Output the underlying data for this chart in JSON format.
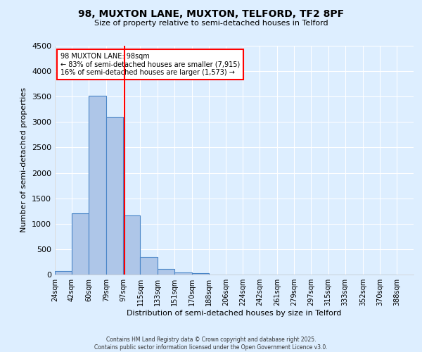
{
  "title_line1": "98, MUXTON LANE, MUXTON, TELFORD, TF2 8PF",
  "title_line2": "Size of property relative to semi-detached houses in Telford",
  "xlabel": "Distribution of semi-detached houses by size in Telford",
  "ylabel": "Number of semi-detached properties",
  "bin_labels": [
    "24sqm",
    "42sqm",
    "60sqm",
    "79sqm",
    "97sqm",
    "115sqm",
    "133sqm",
    "151sqm",
    "170sqm",
    "188sqm",
    "206sqm",
    "224sqm",
    "242sqm",
    "261sqm",
    "279sqm",
    "297sqm",
    "315sqm",
    "333sqm",
    "352sqm",
    "370sqm",
    "388sqm"
  ],
  "bin_edges": [
    24,
    42,
    60,
    79,
    97,
    115,
    133,
    151,
    170,
    188,
    206,
    224,
    242,
    261,
    279,
    297,
    315,
    333,
    352,
    370,
    388
  ],
  "bar_values": [
    75,
    1200,
    3520,
    3100,
    1160,
    350,
    110,
    45,
    25,
    5,
    2,
    0,
    0,
    0,
    0,
    0,
    0,
    0,
    0,
    0
  ],
  "bar_color": "#aec6e8",
  "bar_edge_color": "#4a86c8",
  "vline_x": 98,
  "vline_color": "red",
  "ylim": [
    0,
    4500
  ],
  "yticks": [
    0,
    500,
    1000,
    1500,
    2000,
    2500,
    3000,
    3500,
    4000,
    4500
  ],
  "annotation_title": "98 MUXTON LANE: 98sqm",
  "annotation_line1": "← 83% of semi-detached houses are smaller (7,915)",
  "annotation_line2": "16% of semi-detached houses are larger (1,573) →",
  "annotation_box_color": "white",
  "annotation_box_edge_color": "red",
  "footnote_line1": "Contains HM Land Registry data © Crown copyright and database right 2025.",
  "footnote_line2": "Contains public sector information licensed under the Open Government Licence v3.0.",
  "background_color": "#ddeeff",
  "grid_color": "white"
}
